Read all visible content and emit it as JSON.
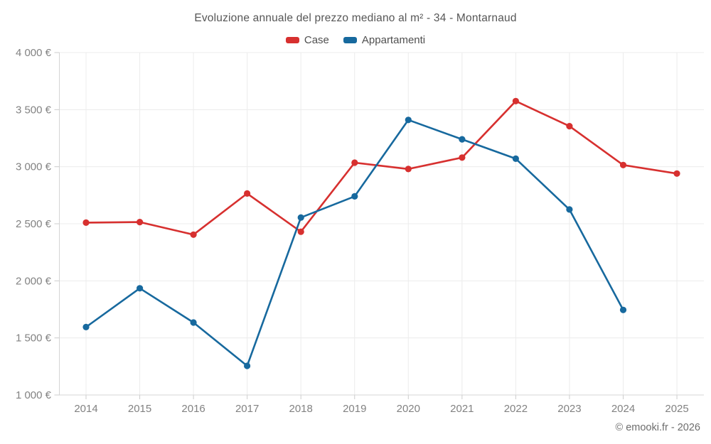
{
  "chart_data": {
    "type": "line",
    "title": "Evoluzione annuale del prezzo mediano al m² - 34 - Montarnaud",
    "categories": [
      "2014",
      "2015",
      "2016",
      "2017",
      "2018",
      "2019",
      "2020",
      "2021",
      "2022",
      "2023",
      "2024",
      "2025"
    ],
    "series": [
      {
        "name": "Case",
        "color": "#d7302f",
        "values": [
          2510,
          2515,
          2405,
          2765,
          2430,
          3035,
          2980,
          3080,
          3575,
          3355,
          3015,
          2940
        ]
      },
      {
        "name": "Appartamenti",
        "color": "#17699e",
        "values": [
          1595,
          1935,
          1635,
          1255,
          2555,
          2740,
          3410,
          3240,
          3070,
          2625,
          1745,
          null
        ]
      }
    ],
    "y_ticks": [
      {
        "value": 1000,
        "label": "1 000 €"
      },
      {
        "value": 1500,
        "label": "1 500 €"
      },
      {
        "value": 2000,
        "label": "2 000 €"
      },
      {
        "value": 2500,
        "label": "2 500 €"
      },
      {
        "value": 3000,
        "label": "3 000 €"
      },
      {
        "value": 3500,
        "label": "3 500 €"
      },
      {
        "value": 4000,
        "label": "4 000 €"
      }
    ],
    "ylim": [
      1000,
      4000
    ],
    "xlabel": "",
    "ylabel": "",
    "grid": true,
    "legend_position": "top",
    "watermark": "© emooki.fr - 2026"
  },
  "colors": {
    "grid_line": "#ececec",
    "axis_line": "#d4d4d4",
    "tick_mark": "#cccccc",
    "tick_label": "#828282",
    "title_text": "#565656",
    "legend_text": "#4f4f4f",
    "watermark_text": "#6d6d6d",
    "background": "#ffffff"
  }
}
